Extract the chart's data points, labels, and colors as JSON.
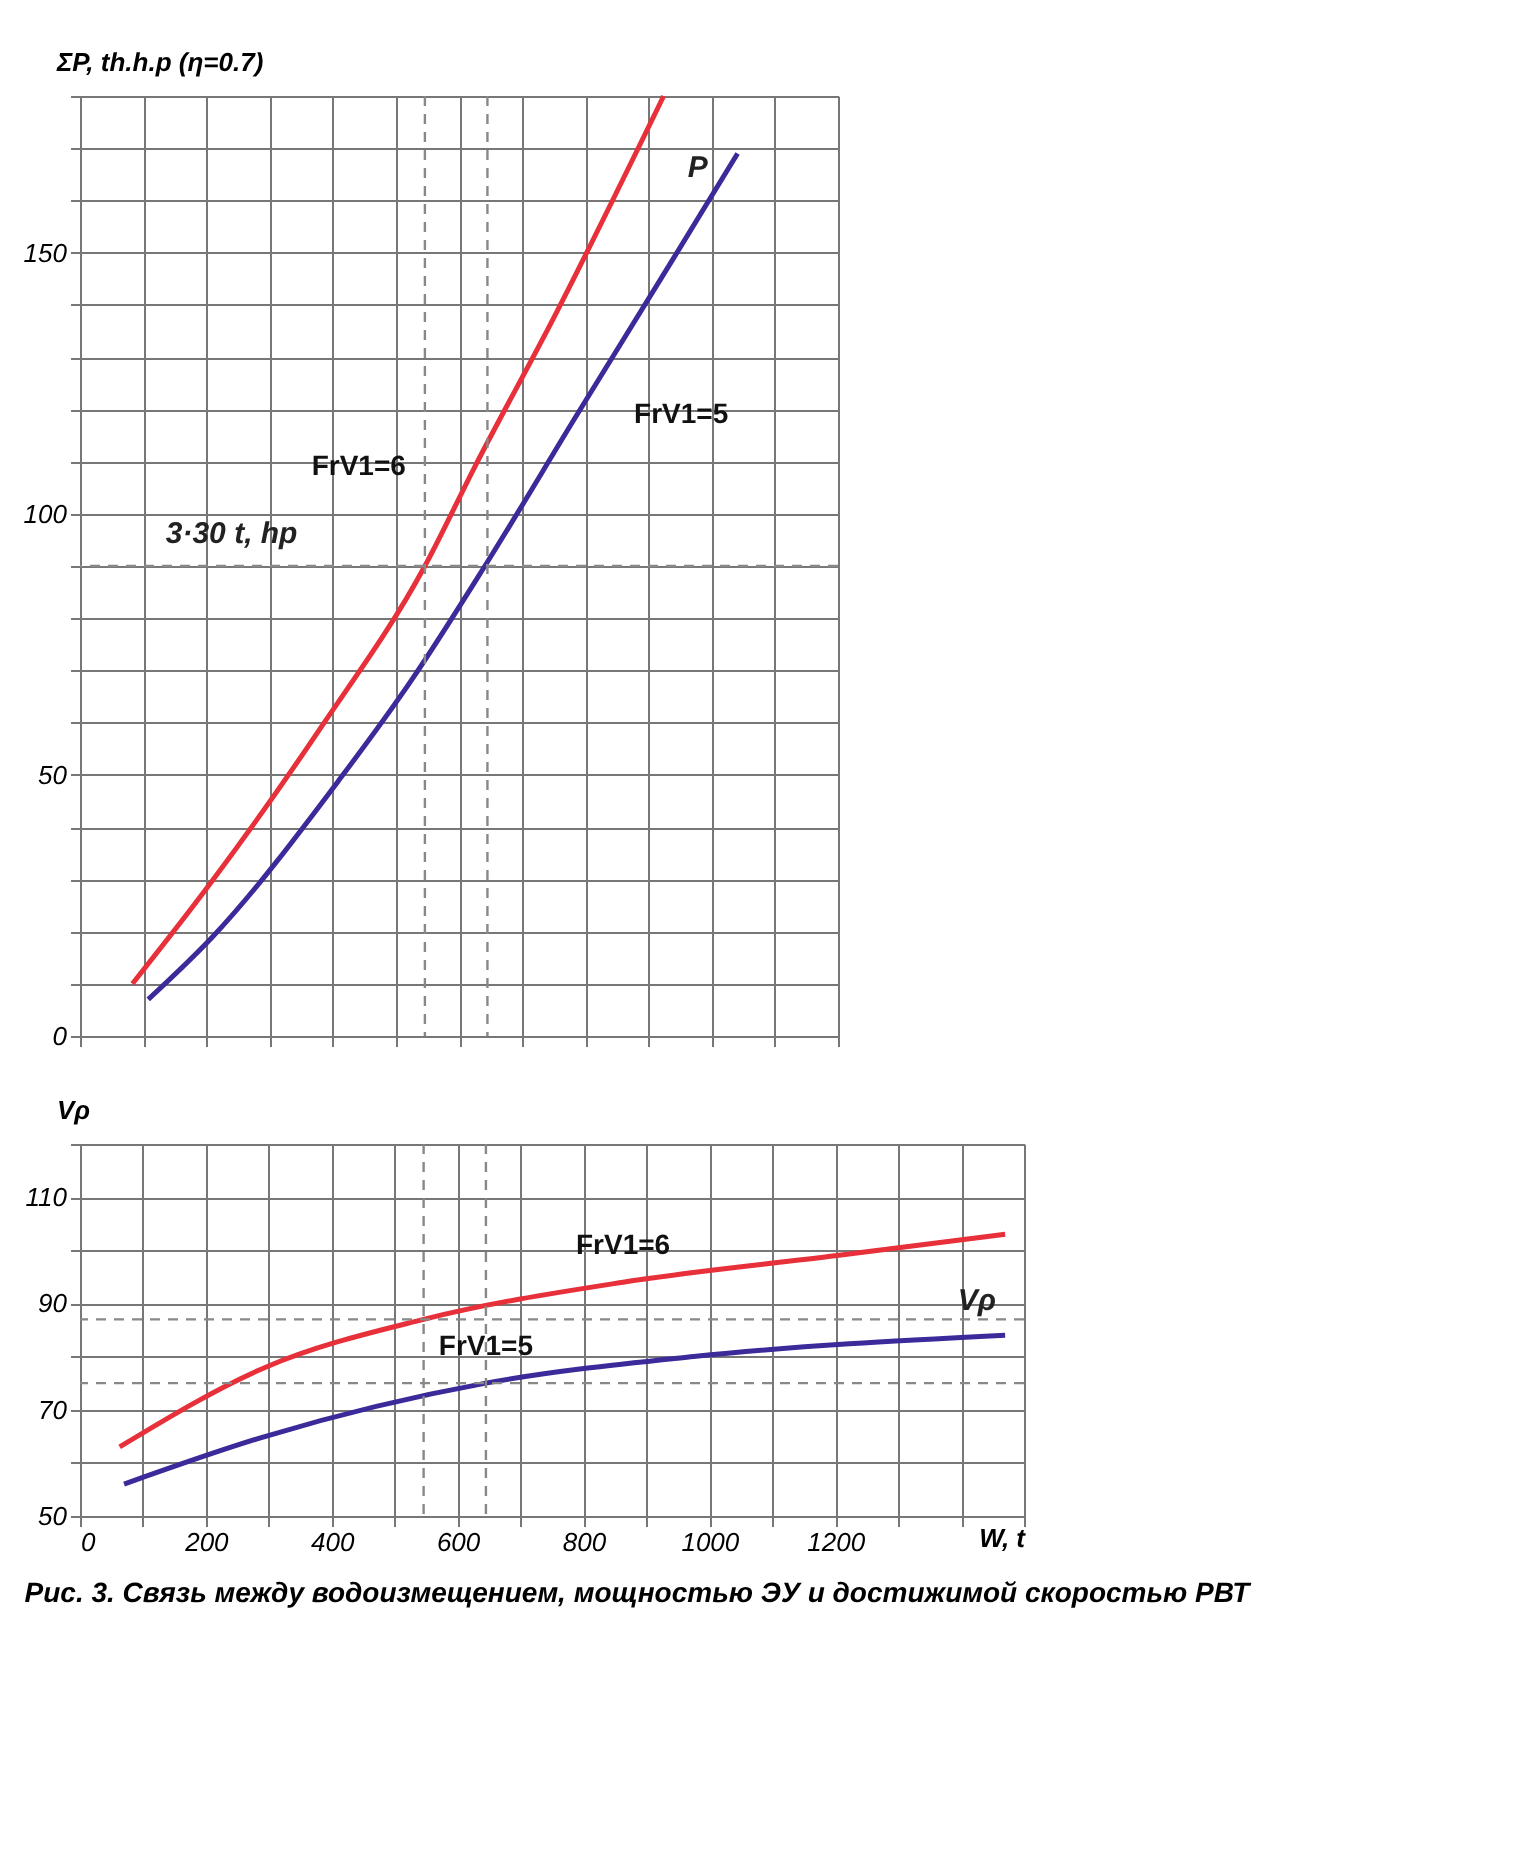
{
  "chart_data": [
    {
      "type": "line",
      "ylabel": "ΣP, th.h.p (η=0.7)",
      "xlim": [
        0,
        1200
      ],
      "ylim": [
        0,
        180
      ],
      "xticks": [
        0,
        {
          "value": 100,
          "label": null
        },
        200,
        {
          "value": 300,
          "label": null
        },
        400,
        {
          "value": 500,
          "label": null
        },
        600,
        {
          "value": 700,
          "label": null
        },
        800,
        {
          "value": 900,
          "label": null
        },
        1000,
        {
          "value": 1100,
          "label": null
        },
        1200
      ],
      "yticks": [
        0,
        {
          "value": 10,
          "label": null
        },
        {
          "value": 20,
          "label": null
        },
        {
          "value": 30,
          "label": null
        },
        {
          "value": 40,
          "label": null
        },
        50,
        {
          "value": 60,
          "label": null
        },
        {
          "value": 70,
          "label": null
        },
        {
          "value": 80,
          "label": null
        },
        {
          "value": 90,
          "label": null
        },
        100,
        {
          "value": 110,
          "label": null
        },
        {
          "value": 120,
          "label": null
        },
        {
          "value": 130,
          "label": null
        },
        {
          "value": 140,
          "label": null
        },
        150,
        {
          "value": 160,
          "label": null
        },
        {
          "value": 170,
          "label": null
        },
        {
          "value": 180,
          "label": null
        }
      ],
      "tick_labels": "y",
      "grid": true,
      "line_style": "solid",
      "marker": "none",
      "series": [
        {
          "name": "FrV1=6",
          "color": "#e8303a",
          "x": [
            83,
            205,
            381,
            546,
            625,
            752,
            924
          ],
          "values": [
            10,
            29,
            59,
            90,
            109,
            138,
            180
          ]
        },
        {
          "name": "FrV1=5",
          "color": "#3a2a9a",
          "x": [
            108,
            210,
            410,
            524,
            641,
            787,
            940,
            1041
          ],
          "values": [
            7,
            19,
            49,
            68,
            90,
            119,
            149,
            169
          ]
        }
      ],
      "ref_lines": [
        {
          "axis": "y",
          "value": 90,
          "line_style": "dashed",
          "color": "#888888"
        },
        {
          "axis": "x",
          "value": 546,
          "line_style": "dashed",
          "color": "#888888"
        },
        {
          "axis": "x",
          "value": 645,
          "line_style": "dashed",
          "color": "#888888"
        }
      ],
      "annotations": [
        "3·30 t, hp",
        "P"
      ]
    },
    {
      "type": "line",
      "ylabel": "Vρ",
      "xlabel": "W, t",
      "xlim": [
        0,
        1500
      ],
      "ylim": [
        50,
        120
      ],
      "xticks": [
        0,
        {
          "value": 100,
          "label": null
        },
        200,
        {
          "value": 300,
          "label": null
        },
        400,
        {
          "value": 500,
          "label": null
        },
        600,
        {
          "value": 700,
          "label": null
        },
        800,
        {
          "value": 900,
          "label": null
        },
        1000,
        {
          "value": 1100,
          "label": null
        },
        1200,
        {
          "value": 1300,
          "label": null
        },
        {
          "value": 1400,
          "label": null
        },
        {
          "value": 1500,
          "label": null
        }
      ],
      "yticks": [
        50,
        {
          "value": 60,
          "label": null
        },
        70,
        {
          "value": 80,
          "label": null
        },
        90,
        {
          "value": 100,
          "label": null
        },
        110,
        {
          "value": 120,
          "label": null
        }
      ],
      "grid": true,
      "line_style": "solid",
      "marker": "none",
      "series": [
        {
          "name": "FrV1=6",
          "color": "#e8303a",
          "x": [
            63,
            295,
            546,
            863,
            1203,
            1470
          ],
          "values": [
            63,
            78,
            87,
            94,
            99,
            103
          ]
        },
        {
          "name": "FrV1=5",
          "color": "#3a2a9a",
          "x": [
            70,
            295,
            645,
            975,
            1470
          ],
          "values": [
            56,
            65,
            75,
            80,
            84
          ]
        }
      ],
      "ref_lines": [
        {
          "axis": "y",
          "value": 87,
          "line_style": "dashed",
          "color": "#888888"
        },
        {
          "axis": "y",
          "value": 75,
          "line_style": "dashed",
          "color": "#888888"
        },
        {
          "axis": "x",
          "value": 546,
          "line_style": "dashed",
          "color": "#888888"
        },
        {
          "axis": "x",
          "value": 645,
          "line_style": "dashed",
          "color": "#888888"
        }
      ],
      "annotations": [
        "Vρ",
        "Рис. 3. Связь между водоизмещением, мощностью ЭУ и достижимой скоростью РВТ"
      ]
    }
  ]
}
